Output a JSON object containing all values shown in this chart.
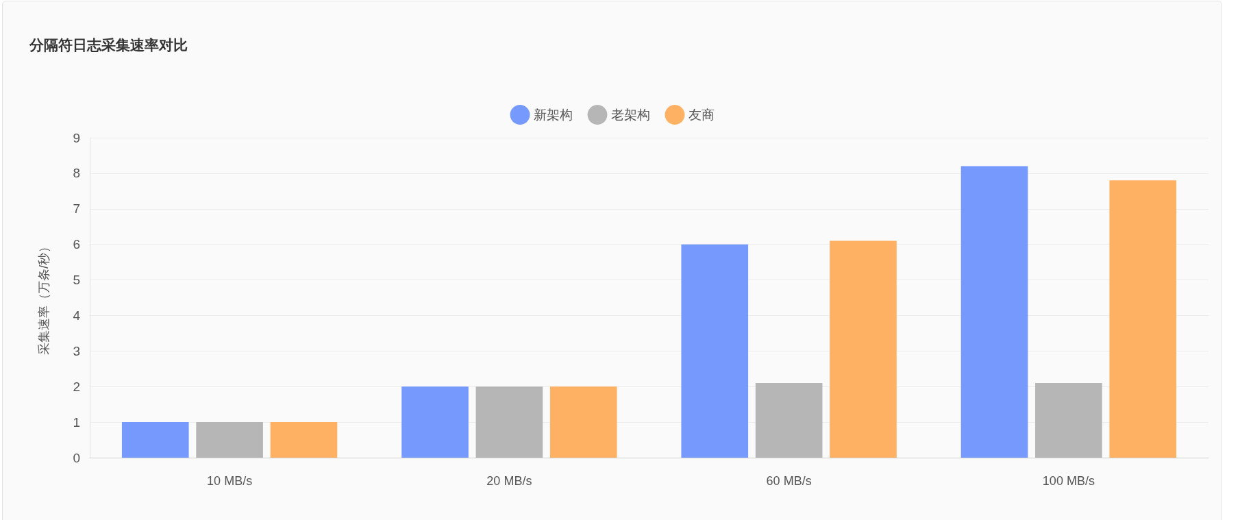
{
  "chart_data": {
    "type": "bar",
    "title": "分隔符日志采集速率对比",
    "categories": [
      "10 MB/s",
      "20 MB/s",
      "60 MB/s",
      "100 MB/s"
    ],
    "series": [
      {
        "name": "新架构",
        "color": "#7599fc",
        "values": [
          1.0,
          2.0,
          6.0,
          8.2
        ]
      },
      {
        "name": "老架构",
        "color": "#b6b6b6",
        "values": [
          1.0,
          2.0,
          2.1,
          2.1
        ]
      },
      {
        "name": "友商",
        "color": "#ffb163",
        "values": [
          1.0,
          2.0,
          6.1,
          7.8
        ]
      }
    ],
    "ylabel": "采集速率（万条/秒）",
    "ylim": [
      0,
      9
    ],
    "yticks": [
      0,
      1,
      2,
      3,
      4,
      5,
      6,
      7,
      8,
      9
    ],
    "grid": "y",
    "legend": "top"
  }
}
